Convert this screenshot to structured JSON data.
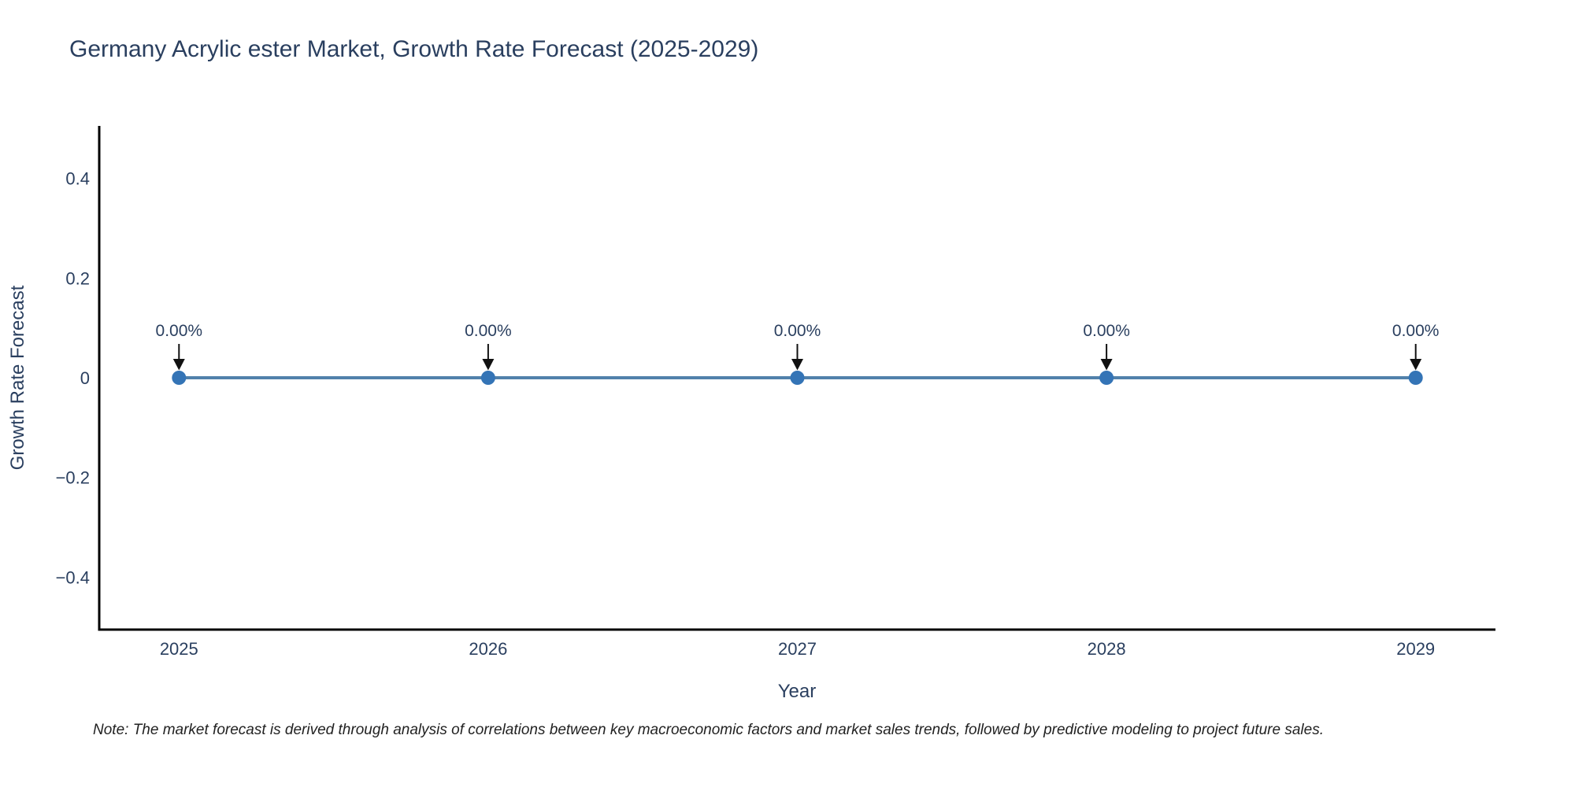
{
  "figure": {
    "title": "Germany Acrylic ester Market, Growth Rate Forecast (2025-2029)",
    "note": "Note: The market forecast is derived through analysis of correlations between key macroeconomic factors and market sales trends, followed by predictive modeling to project future sales."
  },
  "chart_data": {
    "type": "line",
    "title": "Germany Acrylic ester Market, Growth Rate Forecast (2025-2029)",
    "xlabel": "Year",
    "ylabel": "Growth Rate Forecast",
    "x": [
      2025,
      2026,
      2027,
      2028,
      2029
    ],
    "series": [
      {
        "name": "Growth Rate Forecast",
        "values": [
          0,
          0,
          0,
          0,
          0
        ],
        "point_labels": [
          "0.00%",
          "0.00%",
          "0.00%",
          "0.00%",
          "0.00%"
        ]
      }
    ],
    "xlim": [
      2024.742,
      2029.258
    ],
    "ylim": [
      -0.505,
      0.505
    ],
    "xticks": {
      "values": [
        2025,
        2026,
        2027,
        2028,
        2029
      ],
      "labels": [
        "2025",
        "2026",
        "2027",
        "2028",
        "2029"
      ]
    },
    "yticks": {
      "values": [
        0.4,
        0.2,
        0,
        -0.2,
        -0.4
      ],
      "labels": [
        "0.4",
        "0.2",
        "0",
        "−0.2",
        "−0.4"
      ]
    },
    "grid": false,
    "legend": "none",
    "annotation_style": "down-arrow",
    "colors": {
      "line": "#5181ab",
      "marker": "#3474b6",
      "axis": "#000000",
      "text": "#2a3f5f",
      "arrow": "#111111",
      "note": "#222222",
      "background": "#ffffff"
    }
  }
}
